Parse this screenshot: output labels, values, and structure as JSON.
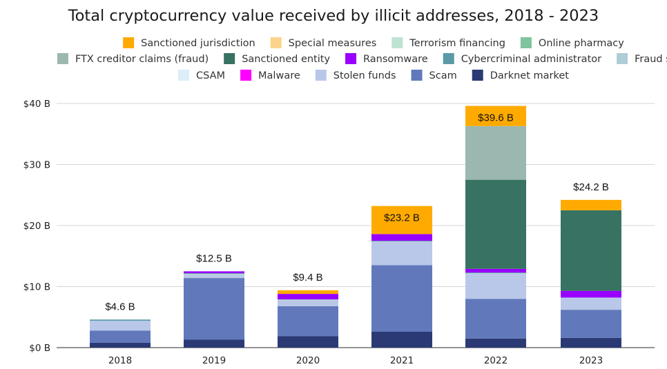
{
  "chart_data": {
    "type": "bar",
    "stacked": true,
    "title": "Total cryptocurrency value received by illicit addresses, 2018 - 2023",
    "xlabel": "",
    "ylabel": "",
    "ylim": [
      0,
      40
    ],
    "yticks": [
      0,
      10,
      20,
      30,
      40
    ],
    "ytick_labels": [
      "$0 B",
      "$10 B",
      "$20 B",
      "$30 B",
      "$40 B"
    ],
    "grid": true,
    "legend_position": "top",
    "categories": [
      "2018",
      "2019",
      "2020",
      "2021",
      "2022",
      "2023"
    ],
    "totals": [
      4.6,
      12.5,
      9.4,
      23.2,
      39.6,
      24.2
    ],
    "total_labels": [
      "$4.6 B",
      "$12.5 B",
      "$9.4 B",
      "$23.2 B",
      "$39.6 B",
      "$24.2 B"
    ],
    "legend_rows": [
      [
        "Sanctioned jurisdiction",
        "Special measures",
        "Terrorism financing",
        "Online pharmacy"
      ],
      [
        "FTX creditor claims (fraud)",
        "Sanctioned entity",
        "Ransomware",
        "Cybercriminal administrator",
        "Fraud shop"
      ],
      [
        "CSAM",
        "Malware",
        "Stolen funds",
        "Scam",
        "Darknet market"
      ]
    ],
    "series": [
      {
        "name": "Darknet market",
        "color": "#2b3a75",
        "values": [
          0.8,
          1.3,
          1.9,
          2.6,
          1.5,
          1.6
        ]
      },
      {
        "name": "Scam",
        "color": "#6179bb",
        "values": [
          2.0,
          10.1,
          4.9,
          10.9,
          6.5,
          4.6
        ]
      },
      {
        "name": "Stolen funds",
        "color": "#b9c8e9",
        "values": [
          1.6,
          0.5,
          0.9,
          3.8,
          4.1,
          2.0
        ]
      },
      {
        "name": "Malware",
        "color": "#ff00ff",
        "values": [
          0.0,
          0.0,
          0.0,
          0.0,
          0.0,
          0.0
        ]
      },
      {
        "name": "CSAM",
        "color": "#dceef8",
        "values": [
          0.0,
          0.0,
          0.0,
          0.0,
          0.0,
          0.0
        ]
      },
      {
        "name": "Fraud shop",
        "color": "#aecdd6",
        "values": [
          0.0,
          0.2,
          0.2,
          0.1,
          0.1,
          0.0
        ]
      },
      {
        "name": "Cybercriminal administrator",
        "color": "#5b9aa6",
        "values": [
          0.2,
          0.1,
          0.0,
          0.1,
          0.1,
          0.0
        ]
      },
      {
        "name": "Ransomware",
        "color": "#9900ff",
        "values": [
          0.0,
          0.3,
          0.9,
          1.1,
          0.6,
          1.1
        ]
      },
      {
        "name": "Sanctioned entity",
        "color": "#377262",
        "values": [
          0.0,
          0.0,
          0.0,
          0.0,
          14.6,
          13.2
        ]
      },
      {
        "name": "FTX creditor claims (fraud)",
        "color": "#9ab8b0",
        "values": [
          0.0,
          0.0,
          0.0,
          0.0,
          8.8,
          0.0
        ]
      },
      {
        "name": "Online pharmacy",
        "color": "#7ec49c",
        "values": [
          0.0,
          0.0,
          0.0,
          0.0,
          0.0,
          0.0
        ]
      },
      {
        "name": "Terrorism financing",
        "color": "#bfe3d2",
        "values": [
          0.0,
          0.0,
          0.0,
          0.0,
          0.0,
          0.0
        ]
      },
      {
        "name": "Special measures",
        "color": "#fcd38a",
        "values": [
          0.0,
          0.0,
          0.0,
          0.0,
          0.0,
          0.0
        ]
      },
      {
        "name": "Sanctioned jurisdiction",
        "color": "#ffaa00",
        "values": [
          0.0,
          0.0,
          0.6,
          4.6,
          3.3,
          1.7
        ]
      }
    ]
  }
}
